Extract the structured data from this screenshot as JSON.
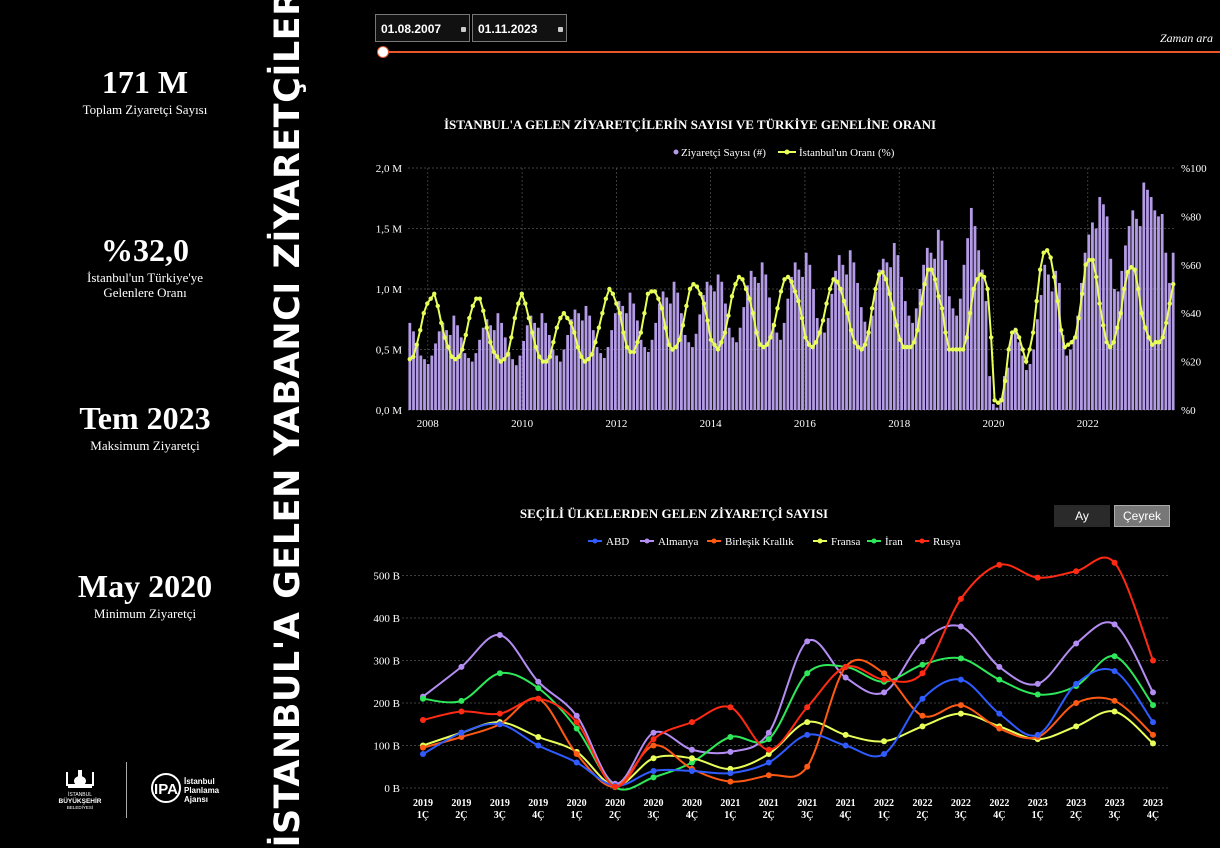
{
  "kpis": [
    {
      "value": "171 M",
      "label": "Toplam Ziyaretçi Sayısı"
    },
    {
      "value": "%32,0",
      "label_line1": "İstanbul'un Türkiye'ye",
      "label_line2": "Gelenlere Oranı"
    },
    {
      "value": "Tem 2023",
      "label": "Maksimum Ziyaretçi"
    },
    {
      "value": "May 2020",
      "label": "Minimum Ziyaretçi"
    }
  ],
  "vertical_title": "İSTANBUL'A GELEN YABANCI ZİYARETÇİLER",
  "logos": {
    "ibb_line1": "İSTANBUL",
    "ibb_line2": "BÜYÜKŞEHİR",
    "ibb_line3": "BELEDİYESİ",
    "ipa_line1": "İstanbul",
    "ipa_line2": "Planlama",
    "ipa_line3": "Ajansı",
    "ipa_mark": "IPA"
  },
  "filters": {
    "start_date": "01.08.2007",
    "end_date": "01.11.2023",
    "slider_label": "Zaman ara"
  },
  "granularity_buttons": {
    "month": "Ay",
    "quarter": "Çeyrek",
    "active": "quarter"
  },
  "colors": {
    "bar": "#b49be6",
    "ratio_line": "#e8ff59",
    "slider": "#e8562a",
    "ABD": "#2f5bff",
    "Almanya": "#b48df2",
    "Birleşik Krallık": "#ff5a14",
    "Fransa": "#e8ff59",
    "İran": "#2ee85a",
    "Rusya": "#ff2a14"
  },
  "chart_data": [
    {
      "type": "bar+line",
      "title": "İSTANBUL'A GELEN ZİYARETÇİLERİN SAYISI VE TÜRKİYE GENELİNE ORANI",
      "legend": [
        "Ziyaretçi Sayısı (#)",
        "İstanbul'un Oranı (%)"
      ],
      "legend_position": "top-center",
      "x_range": [
        2007.58,
        2023.85
      ],
      "x_ticks": [
        2008,
        2010,
        2012,
        2014,
        2016,
        2018,
        2020,
        2022
      ],
      "y_left_range": [
        0,
        2000000
      ],
      "y_left_ticks": [
        "0,0 M",
        "0,5 M",
        "1,0 M",
        "1,5 M",
        "2,0 M"
      ],
      "y_right_range": [
        0,
        100
      ],
      "y_right_ticks": [
        "%0",
        "%20",
        "%40",
        "%60",
        "%80",
        "%100"
      ],
      "grid": true,
      "series": [
        {
          "name": "Ziyaretçi Sayısı (#)",
          "kind": "bar",
          "note": "monthly visitors from 2007-08 to 2023-11, in millions",
          "values": [
            0.72,
            0.65,
            0.55,
            0.45,
            0.42,
            0.38,
            0.45,
            0.55,
            0.65,
            0.72,
            0.66,
            0.62,
            0.78,
            0.7,
            0.6,
            0.47,
            0.43,
            0.4,
            0.47,
            0.58,
            0.68,
            0.75,
            0.7,
            0.66,
            0.8,
            0.72,
            0.6,
            0.48,
            0.42,
            0.37,
            0.45,
            0.57,
            0.7,
            0.78,
            0.72,
            0.68,
            0.8,
            0.72,
            0.62,
            0.5,
            0.45,
            0.4,
            0.5,
            0.62,
            0.75,
            0.83,
            0.8,
            0.74,
            0.86,
            0.78,
            0.66,
            0.52,
            0.47,
            0.43,
            0.52,
            0.66,
            0.8,
            0.9,
            0.86,
            0.8,
            0.97,
            0.88,
            0.74,
            0.58,
            0.52,
            0.48,
            0.58,
            0.72,
            0.88,
            0.98,
            0.93,
            0.88,
            1.06,
            0.97,
            0.8,
            0.62,
            0.56,
            0.52,
            0.63,
            0.79,
            0.95,
            1.06,
            1.03,
            0.98,
            1.12,
            1.06,
            0.88,
            0.68,
            0.6,
            0.56,
            0.68,
            0.85,
            1.03,
            1.15,
            1.1,
            1.05,
            1.22,
            1.12,
            0.93,
            0.72,
            0.64,
            0.58,
            0.72,
            0.92,
            1.1,
            1.22,
            1.16,
            1.1,
            1.3,
            1.2,
            1.0,
            0.76,
            0.68,
            0.64,
            0.76,
            0.96,
            1.15,
            1.28,
            1.2,
            1.12,
            1.32,
            1.22,
            1.05,
            0.85,
            0.73,
            0.66,
            0.78,
            0.98,
            1.16,
            1.25,
            1.22,
            1.18,
            1.38,
            1.28,
            1.1,
            0.9,
            0.78,
            0.72,
            0.84,
            1.0,
            1.2,
            1.34,
            1.3,
            1.25,
            1.49,
            1.4,
            1.24,
            0.94,
            0.84,
            0.78,
            0.92,
            1.2,
            1.42,
            1.67,
            1.52,
            1.32,
            1.16,
            0.9,
            0.28,
            0.05,
            0.02,
            0.1,
            0.28,
            0.35,
            0.62,
            0.68,
            0.56,
            0.45,
            0.33,
            0.38,
            0.5,
            0.75,
            0.95,
            1.2,
            1.12,
            0.98,
            1.15,
            1.05,
            0.62,
            0.45,
            0.5,
            0.58,
            0.78,
            1.05,
            1.3,
            1.45,
            1.55,
            1.5,
            1.76,
            1.7,
            1.6,
            1.25,
            1.0,
            0.98,
            1.15,
            1.36,
            1.52,
            1.65,
            1.58,
            1.52,
            1.88,
            1.82,
            1.76,
            1.65,
            1.6,
            1.62,
            1.3,
            1.05,
            1.3
          ]
        },
        {
          "name": "İstanbul'un Oranı (%)",
          "kind": "line",
          "values": [
            21,
            22,
            27,
            33,
            40,
            44,
            46,
            48,
            43,
            36,
            30,
            26,
            22,
            21,
            22,
            25,
            31,
            38,
            43,
            46,
            46,
            41,
            34,
            28,
            24,
            22,
            20,
            21,
            23,
            30,
            38,
            44,
            48,
            44,
            38,
            32,
            26,
            22,
            20,
            20,
            22,
            28,
            34,
            38,
            40,
            38,
            36,
            32,
            26,
            22,
            20,
            21,
            23,
            28,
            34,
            40,
            46,
            50,
            48,
            44,
            40,
            32,
            26,
            24,
            24,
            28,
            32,
            40,
            48,
            49,
            49,
            46,
            42,
            34,
            27,
            25,
            26,
            29,
            35,
            43,
            50,
            52,
            51,
            48,
            44,
            37,
            29,
            27,
            25,
            28,
            32,
            39,
            47,
            52,
            55,
            54,
            50,
            46,
            40,
            32,
            27,
            26,
            27,
            30,
            35,
            42,
            49,
            54,
            55,
            53,
            49,
            45,
            38,
            30,
            27,
            26,
            28,
            32,
            37,
            44,
            50,
            54,
            53,
            50,
            45,
            40,
            33,
            28,
            26,
            25,
            27,
            32,
            42,
            50,
            56,
            57,
            54,
            48,
            42,
            35,
            29,
            26,
            26,
            26,
            28,
            33,
            44,
            52,
            58,
            58,
            54,
            47,
            42,
            32,
            25,
            25,
            25,
            25,
            25,
            30,
            40,
            50,
            54,
            56,
            55,
            50,
            30,
            4,
            3,
            4,
            12,
            25,
            32,
            33,
            30,
            25,
            20,
            25,
            32,
            45,
            58,
            65,
            66,
            63,
            55,
            45,
            33,
            26,
            27,
            28,
            30,
            38,
            48,
            60,
            62,
            62,
            55,
            44,
            35,
            28,
            26,
            28,
            34,
            40,
            50,
            57,
            59,
            58,
            50,
            40,
            34,
            30,
            27,
            28,
            28,
            30,
            36,
            44,
            52
          ]
        }
      ]
    },
    {
      "type": "line",
      "title": "SEÇİLİ ÜLKELERDEN GELEN ZİYARETÇİ SAYISI",
      "legend_position": "top-center",
      "categories": [
        "2019 1Ç",
        "2019 2Ç",
        "2019 3Ç",
        "2019 4Ç",
        "2020 1Ç",
        "2020 2Ç",
        "2020 3Ç",
        "2020 4Ç",
        "2021 1Ç",
        "2021 2Ç",
        "2021 3Ç",
        "2021 4Ç",
        "2022 1Ç",
        "2022 2Ç",
        "2022 3Ç",
        "2022 4Ç",
        "2023 1Ç",
        "2023 2Ç",
        "2023 3Ç",
        "2023 4Ç"
      ],
      "ylim": [
        0,
        560
      ],
      "y_ticks": [
        "0 B",
        "100 B",
        "200 B",
        "300 B",
        "400 B",
        "500 B"
      ],
      "grid": true,
      "series": [
        {
          "name": "ABD",
          "values": [
            80,
            130,
            150,
            100,
            60,
            5,
            40,
            40,
            35,
            60,
            125,
            100,
            80,
            210,
            255,
            175,
            125,
            245,
            275,
            155
          ]
        },
        {
          "name": "Almanya",
          "values": [
            215,
            285,
            360,
            250,
            170,
            10,
            130,
            90,
            85,
            130,
            345,
            260,
            225,
            345,
            380,
            285,
            245,
            340,
            385,
            225
          ]
        },
        {
          "name": "Birleşik Krallık",
          "values": [
            95,
            120,
            150,
            210,
            80,
            3,
            100,
            45,
            15,
            30,
            50,
            285,
            270,
            170,
            195,
            140,
            120,
            200,
            205,
            125
          ]
        },
        {
          "name": "Fransa",
          "values": [
            100,
            130,
            155,
            120,
            85,
            5,
            70,
            70,
            45,
            80,
            155,
            125,
            110,
            145,
            175,
            145,
            115,
            145,
            180,
            105
          ]
        },
        {
          "name": "İran",
          "values": [
            210,
            205,
            270,
            235,
            140,
            2,
            25,
            60,
            120,
            115,
            270,
            285,
            250,
            290,
            305,
            255,
            220,
            240,
            310,
            195
          ]
        },
        {
          "name": "Rusya",
          "values": [
            160,
            180,
            175,
            210,
            155,
            3,
            115,
            155,
            190,
            90,
            190,
            285,
            255,
            270,
            445,
            525,
            495,
            510,
            530,
            300
          ]
        }
      ]
    }
  ]
}
